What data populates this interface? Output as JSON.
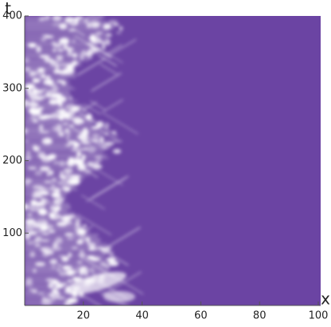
{
  "chart_data": {
    "type": "heatmap",
    "xlabel": "x",
    "ylabel": "t",
    "xlim": [
      0,
      100
    ],
    "ylim": [
      0,
      400
    ],
    "xticks": [
      20,
      40,
      60,
      80,
      100
    ],
    "yticks": [
      100,
      200,
      300,
      400
    ],
    "color": "#6b44a3",
    "highlight_color": "#ffffff"
  }
}
